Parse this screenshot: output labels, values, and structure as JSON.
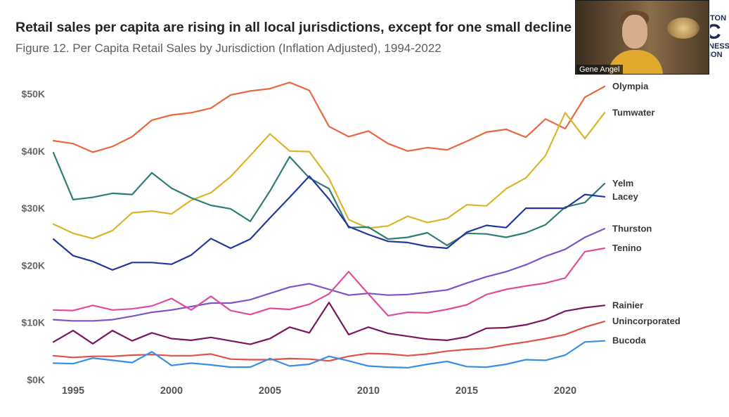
{
  "title": "Retail sales per capita are rising in all local jurisdictions, except for one small decline in L",
  "subtitle": "Figure 12. Per Capita Retail Sales by Jurisdiction (Inflation Adjusted), 1994-2022",
  "video": {
    "name": "Gene Angel"
  },
  "logo_fragment": {
    "line1": "TON",
    "line2": "C",
    "line3": "NESS",
    "line4": "ION"
  },
  "chart_data": {
    "type": "line",
    "title": "Figure 12. Per Capita Retail Sales by Jurisdiction (Inflation Adjusted), 1994-2022",
    "xlabel": "",
    "ylabel": "",
    "x": [
      1994,
      1995,
      1996,
      1997,
      1998,
      1999,
      2000,
      2001,
      2002,
      2003,
      2004,
      2005,
      2006,
      2007,
      2008,
      2009,
      2010,
      2011,
      2012,
      2013,
      2014,
      2015,
      2016,
      2017,
      2018,
      2019,
      2020,
      2021,
      2022
    ],
    "xlim": [
      1994,
      2022
    ],
    "ylim": [
      0,
      52000
    ],
    "x_ticks": [
      1995,
      2000,
      2005,
      2010,
      2015,
      2020
    ],
    "y_ticks": [
      0,
      10000,
      20000,
      30000,
      40000,
      50000
    ],
    "y_tick_labels": [
      "$0K",
      "$10K",
      "$20K",
      "$30K",
      "$40K",
      "$50K"
    ],
    "grid": false,
    "legend": "inline labels at right",
    "series": [
      {
        "name": "Olympia",
        "color": "#e8683f",
        "values": [
          41800,
          41300,
          39800,
          40800,
          42500,
          45400,
          46300,
          46700,
          47500,
          49800,
          50500,
          50900,
          52000,
          50600,
          44300,
          42500,
          43500,
          41300,
          40000,
          40600,
          40200,
          41700,
          43300,
          43800,
          42400,
          45600,
          43900,
          49400,
          51300
        ]
      },
      {
        "name": "Tumwater",
        "color": "#dcb42b",
        "values": [
          27200,
          25600,
          24700,
          26100,
          29200,
          29500,
          29000,
          31400,
          32700,
          35500,
          39200,
          43000,
          40000,
          39900,
          35200,
          28000,
          26500,
          26900,
          28600,
          27500,
          28200,
          30600,
          30400,
          33400,
          35300,
          39200,
          46700,
          42200,
          46700
        ]
      },
      {
        "name": "Yelm",
        "color": "#2f7d76",
        "values": [
          39700,
          31500,
          31900,
          32600,
          32400,
          36200,
          33500,
          31800,
          30500,
          29900,
          27700,
          33000,
          39000,
          35300,
          33400,
          26600,
          26700,
          24600,
          24900,
          25700,
          23500,
          25600,
          25500,
          24900,
          25700,
          27100,
          30200,
          31000,
          34300
        ]
      },
      {
        "name": "Lacey",
        "color": "#23389a",
        "values": [
          24600,
          21700,
          20700,
          19200,
          20500,
          20500,
          20200,
          21800,
          24700,
          23000,
          24600,
          28300,
          31900,
          35600,
          31600,
          26800,
          25400,
          24200,
          24000,
          23300,
          23000,
          25800,
          27000,
          26600,
          30000,
          30000,
          30000,
          32400,
          32000
        ]
      },
      {
        "name": "Thurston",
        "color": "#7b55c7",
        "values": [
          10500,
          10300,
          10300,
          10500,
          11100,
          11800,
          12200,
          12800,
          13400,
          13400,
          14000,
          15100,
          16200,
          16800,
          15800,
          14800,
          15100,
          14800,
          14900,
          15300,
          15700,
          16900,
          18000,
          18900,
          20100,
          21600,
          22800,
          24900,
          26400
        ]
      },
      {
        "name": "Tenino",
        "color": "#e04c97",
        "values": [
          12200,
          12100,
          13000,
          12200,
          12400,
          12900,
          14200,
          12200,
          14600,
          12100,
          11400,
          12500,
          12300,
          13200,
          15000,
          18900,
          15000,
          11200,
          11800,
          11700,
          12300,
          13100,
          14900,
          15800,
          16400,
          16900,
          17800,
          22400,
          23000
        ]
      },
      {
        "name": "Rainier",
        "color": "#7a1560",
        "values": [
          6600,
          8600,
          6300,
          8600,
          6800,
          8200,
          7200,
          6900,
          7400,
          6800,
          6200,
          7200,
          9200,
          8200,
          13500,
          7900,
          9200,
          8100,
          7600,
          7100,
          6900,
          7500,
          9000,
          9100,
          9600,
          10500,
          12000,
          12600,
          13000
        ]
      },
      {
        "name": "Unincorporated",
        "color": "#e2504a",
        "values": [
          4200,
          3900,
          4100,
          4100,
          4300,
          4400,
          4200,
          4200,
          4500,
          3600,
          3500,
          3500,
          3700,
          3600,
          3300,
          4100,
          4600,
          4500,
          4200,
          4500,
          5000,
          5300,
          5500,
          6100,
          6600,
          7200,
          7900,
          9200,
          10200
        ]
      },
      {
        "name": "Bucoda",
        "color": "#3a8ee6",
        "values": [
          2900,
          2800,
          3800,
          3400,
          3000,
          4900,
          2500,
          2900,
          2600,
          2200,
          2200,
          3700,
          2400,
          2700,
          4100,
          3300,
          2400,
          2200,
          2100,
          2700,
          3200,
          2300,
          2200,
          2700,
          3500,
          3400,
          4300,
          6600,
          6800
        ]
      }
    ]
  }
}
